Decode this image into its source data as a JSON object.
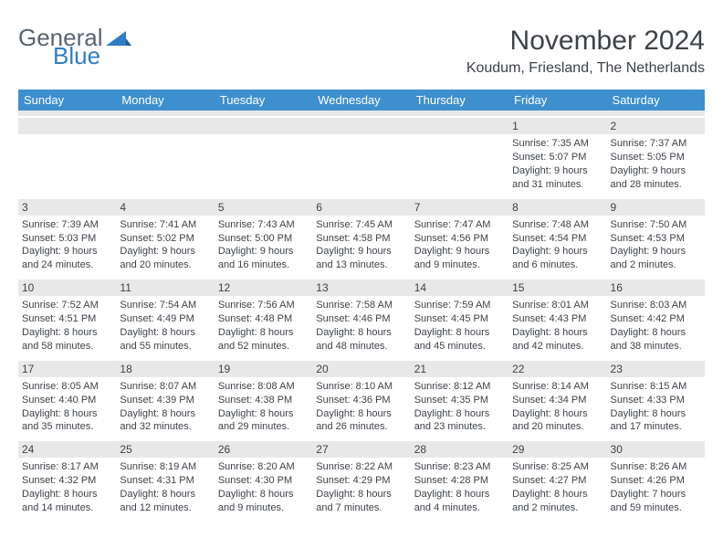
{
  "brand": {
    "part1": "General",
    "part2": "Blue",
    "icon_color": "#2f7dc4",
    "text1_color": "#5a6470"
  },
  "title": "November 2024",
  "location": "Koudum, Friesland, The Netherlands",
  "colors": {
    "header_bg": "#3d8fce",
    "header_text": "#ffffff",
    "daystrip_bg": "#e8e8e8",
    "body_text": "#3d4248"
  },
  "weekdays": [
    "Sunday",
    "Monday",
    "Tuesday",
    "Wednesday",
    "Thursday",
    "Friday",
    "Saturday"
  ],
  "weeks": [
    [
      {
        "day": null
      },
      {
        "day": null
      },
      {
        "day": null
      },
      {
        "day": null
      },
      {
        "day": null
      },
      {
        "day": 1,
        "sunrise": "7:35 AM",
        "sunset": "5:07 PM",
        "daylight": "9 hours and 31 minutes."
      },
      {
        "day": 2,
        "sunrise": "7:37 AM",
        "sunset": "5:05 PM",
        "daylight": "9 hours and 28 minutes."
      }
    ],
    [
      {
        "day": 3,
        "sunrise": "7:39 AM",
        "sunset": "5:03 PM",
        "daylight": "9 hours and 24 minutes."
      },
      {
        "day": 4,
        "sunrise": "7:41 AM",
        "sunset": "5:02 PM",
        "daylight": "9 hours and 20 minutes."
      },
      {
        "day": 5,
        "sunrise": "7:43 AM",
        "sunset": "5:00 PM",
        "daylight": "9 hours and 16 minutes."
      },
      {
        "day": 6,
        "sunrise": "7:45 AM",
        "sunset": "4:58 PM",
        "daylight": "9 hours and 13 minutes."
      },
      {
        "day": 7,
        "sunrise": "7:47 AM",
        "sunset": "4:56 PM",
        "daylight": "9 hours and 9 minutes."
      },
      {
        "day": 8,
        "sunrise": "7:48 AM",
        "sunset": "4:54 PM",
        "daylight": "9 hours and 6 minutes."
      },
      {
        "day": 9,
        "sunrise": "7:50 AM",
        "sunset": "4:53 PM",
        "daylight": "9 hours and 2 minutes."
      }
    ],
    [
      {
        "day": 10,
        "sunrise": "7:52 AM",
        "sunset": "4:51 PM",
        "daylight": "8 hours and 58 minutes."
      },
      {
        "day": 11,
        "sunrise": "7:54 AM",
        "sunset": "4:49 PM",
        "daylight": "8 hours and 55 minutes."
      },
      {
        "day": 12,
        "sunrise": "7:56 AM",
        "sunset": "4:48 PM",
        "daylight": "8 hours and 52 minutes."
      },
      {
        "day": 13,
        "sunrise": "7:58 AM",
        "sunset": "4:46 PM",
        "daylight": "8 hours and 48 minutes."
      },
      {
        "day": 14,
        "sunrise": "7:59 AM",
        "sunset": "4:45 PM",
        "daylight": "8 hours and 45 minutes."
      },
      {
        "day": 15,
        "sunrise": "8:01 AM",
        "sunset": "4:43 PM",
        "daylight": "8 hours and 42 minutes."
      },
      {
        "day": 16,
        "sunrise": "8:03 AM",
        "sunset": "4:42 PM",
        "daylight": "8 hours and 38 minutes."
      }
    ],
    [
      {
        "day": 17,
        "sunrise": "8:05 AM",
        "sunset": "4:40 PM",
        "daylight": "8 hours and 35 minutes."
      },
      {
        "day": 18,
        "sunrise": "8:07 AM",
        "sunset": "4:39 PM",
        "daylight": "8 hours and 32 minutes."
      },
      {
        "day": 19,
        "sunrise": "8:08 AM",
        "sunset": "4:38 PM",
        "daylight": "8 hours and 29 minutes."
      },
      {
        "day": 20,
        "sunrise": "8:10 AM",
        "sunset": "4:36 PM",
        "daylight": "8 hours and 26 minutes."
      },
      {
        "day": 21,
        "sunrise": "8:12 AM",
        "sunset": "4:35 PM",
        "daylight": "8 hours and 23 minutes."
      },
      {
        "day": 22,
        "sunrise": "8:14 AM",
        "sunset": "4:34 PM",
        "daylight": "8 hours and 20 minutes."
      },
      {
        "day": 23,
        "sunrise": "8:15 AM",
        "sunset": "4:33 PM",
        "daylight": "8 hours and 17 minutes."
      }
    ],
    [
      {
        "day": 24,
        "sunrise": "8:17 AM",
        "sunset": "4:32 PM",
        "daylight": "8 hours and 14 minutes."
      },
      {
        "day": 25,
        "sunrise": "8:19 AM",
        "sunset": "4:31 PM",
        "daylight": "8 hours and 12 minutes."
      },
      {
        "day": 26,
        "sunrise": "8:20 AM",
        "sunset": "4:30 PM",
        "daylight": "8 hours and 9 minutes."
      },
      {
        "day": 27,
        "sunrise": "8:22 AM",
        "sunset": "4:29 PM",
        "daylight": "8 hours and 7 minutes."
      },
      {
        "day": 28,
        "sunrise": "8:23 AM",
        "sunset": "4:28 PM",
        "daylight": "8 hours and 4 minutes."
      },
      {
        "day": 29,
        "sunrise": "8:25 AM",
        "sunset": "4:27 PM",
        "daylight": "8 hours and 2 minutes."
      },
      {
        "day": 30,
        "sunrise": "8:26 AM",
        "sunset": "4:26 PM",
        "daylight": "7 hours and 59 minutes."
      }
    ]
  ],
  "labels": {
    "sunrise": "Sunrise:",
    "sunset": "Sunset:",
    "daylight": "Daylight:"
  }
}
